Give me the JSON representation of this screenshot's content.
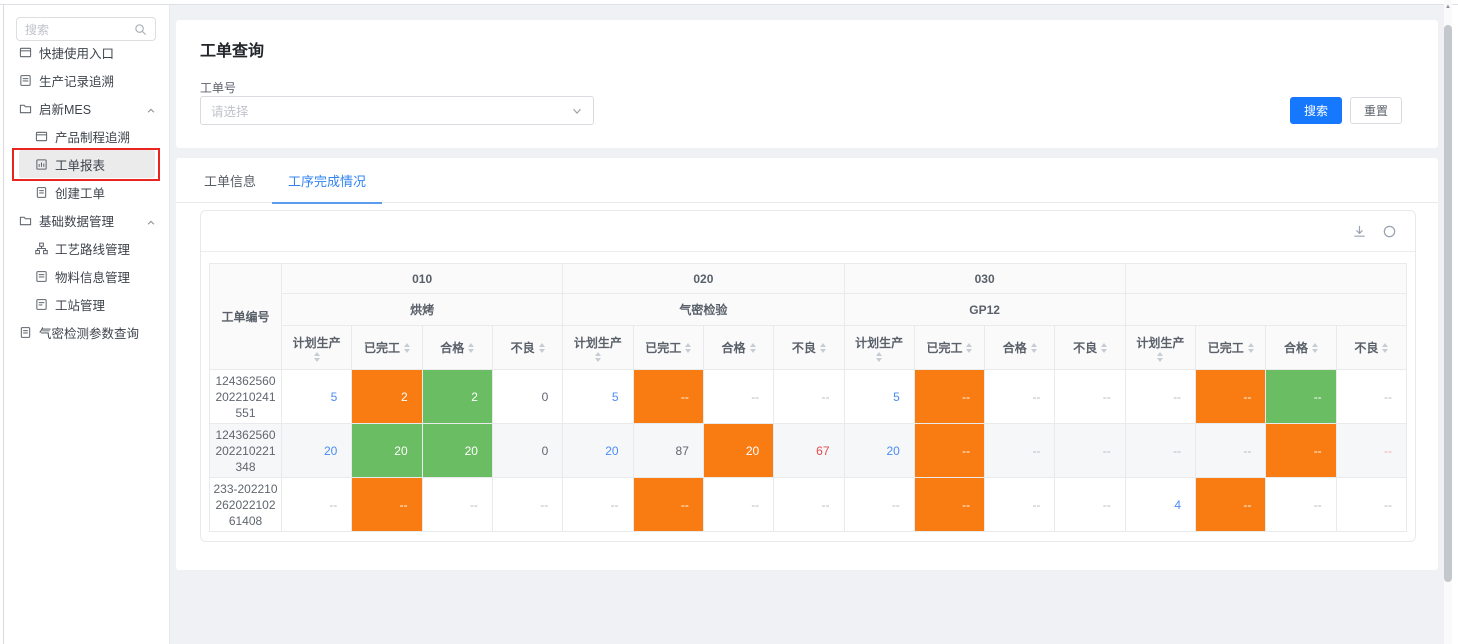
{
  "sidebar": {
    "search_placeholder": "搜索",
    "items": [
      {
        "label": "快捷使用入口",
        "icon": "panel-icon",
        "level": 1
      },
      {
        "label": "生产记录追溯",
        "icon": "record-icon",
        "level": 1
      },
      {
        "label": "启新MES",
        "icon": "folder-icon",
        "level": 1,
        "expandable": true
      },
      {
        "label": "产品制程追溯",
        "icon": "trace-icon",
        "level": 2
      },
      {
        "label": "工单报表",
        "icon": "report-icon",
        "level": 2,
        "selected": true
      },
      {
        "label": "创建工单",
        "icon": "create-icon",
        "level": 2
      },
      {
        "label": "基础数据管理",
        "icon": "folder-icon",
        "level": 1,
        "expandable": true
      },
      {
        "label": "工艺路线管理",
        "icon": "route-icon",
        "level": 2
      },
      {
        "label": "物料信息管理",
        "icon": "material-icon",
        "level": 2
      },
      {
        "label": "工站管理",
        "icon": "station-icon",
        "level": 2
      },
      {
        "label": "气密检测参数查询",
        "icon": "param-icon",
        "level": 1
      }
    ],
    "annotation": {
      "shape": "red-highlight-box",
      "target_item": "工单报表",
      "color": "#e8261f"
    }
  },
  "query": {
    "title": "工单查询",
    "field_label": "工单号",
    "select_placeholder": "请选择",
    "search_button": "搜索",
    "reset_button": "重置"
  },
  "tabs": [
    {
      "label": "工单信息",
      "active": false
    },
    {
      "label": "工序完成情况",
      "active": true
    }
  ],
  "toolbar_icons": [
    "download-icon",
    "refresh-circle-icon"
  ],
  "table": {
    "row_header": "工单编号",
    "groups": [
      {
        "code": "010",
        "name": "烘烤"
      },
      {
        "code": "020",
        "name": "气密检验"
      },
      {
        "code": "030",
        "name": "GP12"
      },
      {
        "code": "",
        "name": ""
      }
    ],
    "sub_columns": [
      "计划生产",
      "已完工",
      "合格",
      "不良"
    ],
    "rows": [
      {
        "order_no": "124362560202210241551",
        "cells": [
          {
            "v": "5",
            "s": "link"
          },
          {
            "v": "2",
            "s": "orange"
          },
          {
            "v": "2",
            "s": "green"
          },
          {
            "v": "0",
            "s": "plain"
          },
          {
            "v": "5",
            "s": "link"
          },
          {
            "v": "--",
            "s": "orange"
          },
          {
            "v": "--",
            "s": "muted"
          },
          {
            "v": "--",
            "s": "muted"
          },
          {
            "v": "5",
            "s": "link"
          },
          {
            "v": "--",
            "s": "orange"
          },
          {
            "v": "--",
            "s": "muted"
          },
          {
            "v": "--",
            "s": "muted"
          },
          {
            "v": "--",
            "s": "muted"
          },
          {
            "v": "--",
            "s": "orange"
          },
          {
            "v": "--",
            "s": "green"
          },
          {
            "v": "--",
            "s": "muted"
          }
        ]
      },
      {
        "order_no": "124362560202210221348",
        "cells": [
          {
            "v": "20",
            "s": "link"
          },
          {
            "v": "20",
            "s": "green"
          },
          {
            "v": "20",
            "s": "green"
          },
          {
            "v": "0",
            "s": "plain"
          },
          {
            "v": "20",
            "s": "link"
          },
          {
            "v": "87",
            "s": "plain"
          },
          {
            "v": "20",
            "s": "orange"
          },
          {
            "v": "67",
            "s": "red"
          },
          {
            "v": "20",
            "s": "link"
          },
          {
            "v": "--",
            "s": "orange"
          },
          {
            "v": "--",
            "s": "muted"
          },
          {
            "v": "--",
            "s": "muted"
          },
          {
            "v": "--",
            "s": "muted"
          },
          {
            "v": "--",
            "s": "muted"
          },
          {
            "v": "--",
            "s": "orange"
          },
          {
            "v": "--",
            "s": "redlight"
          }
        ]
      },
      {
        "order_no": "233-20221026202210261408",
        "cells": [
          {
            "v": "--",
            "s": "muted"
          },
          {
            "v": "--",
            "s": "orange"
          },
          {
            "v": "--",
            "s": "muted"
          },
          {
            "v": "--",
            "s": "muted"
          },
          {
            "v": "--",
            "s": "muted"
          },
          {
            "v": "--",
            "s": "orange"
          },
          {
            "v": "--",
            "s": "muted"
          },
          {
            "v": "--",
            "s": "muted"
          },
          {
            "v": "--",
            "s": "muted"
          },
          {
            "v": "--",
            "s": "orange"
          },
          {
            "v": "--",
            "s": "muted"
          },
          {
            "v": "--",
            "s": "muted"
          },
          {
            "v": "4",
            "s": "link"
          },
          {
            "v": "--",
            "s": "orange"
          },
          {
            "v": "--",
            "s": "muted"
          },
          {
            "v": "--",
            "s": "muted"
          }
        ]
      }
    ]
  },
  "colors": {
    "primary_button": "#1677ff",
    "tab_active": "#3084f2",
    "cell_orange": "#f87c11",
    "cell_green": "#6abd62",
    "link_blue": "#4a8cf5",
    "red_text": "#e34d4f",
    "annotation_red": "#e8261f",
    "header_bg": "#fafafa",
    "stripe_bg": "#f6f7f9",
    "page_bg": "#eff1f4"
  }
}
